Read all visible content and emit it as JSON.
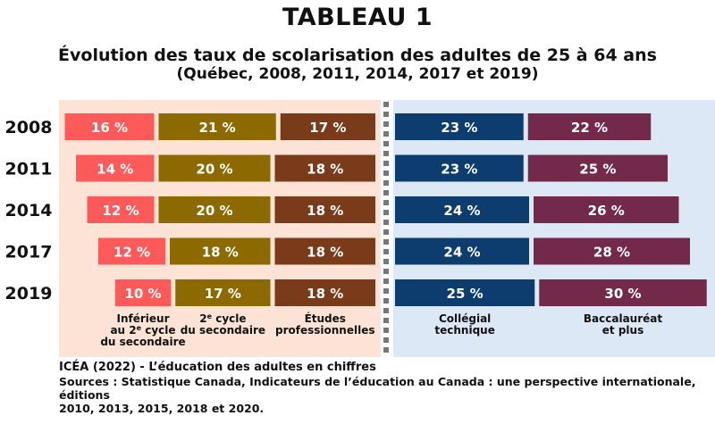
{
  "title": "TABLEAU 1",
  "subtitle": "Évolution des taux de scolarisation des adultes de 25 à 64 ans",
  "subtitle2": "(Québec, 2008, 2011, 2014, 2017 et 2019)",
  "colors": {
    "left_panel_bg": "#fde3d6",
    "right_panel_bg": "#dde8f6",
    "divider": "#777777"
  },
  "chart_data": {
    "type": "bar",
    "layout": "stacked-horizontal-diverging",
    "categories": [
      "2008",
      "2011",
      "2014",
      "2017",
      "2019"
    ],
    "value_suffix": " %",
    "series": [
      {
        "key": "inf",
        "label_lines": [
          "Inférieur",
          "au 2e cycle",
          "du secondaire"
        ],
        "color": "#ff5a5a",
        "side": "left",
        "values": [
          16,
          14,
          12,
          12,
          10
        ]
      },
      {
        "key": "sec",
        "label_lines": [
          "2e cycle",
          "du secondaire"
        ],
        "color": "#8c6a00",
        "side": "left",
        "values": [
          21,
          20,
          20,
          18,
          17
        ]
      },
      {
        "key": "pro",
        "label_lines": [
          "Études",
          "professionnelles"
        ],
        "color": "#7a3b1a",
        "side": "left",
        "values": [
          17,
          18,
          18,
          18,
          18
        ]
      },
      {
        "key": "col",
        "label_lines": [
          "Collégial",
          "technique"
        ],
        "color": "#0d3d6e",
        "side": "right",
        "values": [
          23,
          23,
          24,
          24,
          25
        ]
      },
      {
        "key": "bac",
        "label_lines": [
          "Baccalauréat",
          "et plus"
        ],
        "color": "#732a4a",
        "side": "right",
        "values": [
          22,
          25,
          26,
          28,
          30
        ]
      }
    ]
  },
  "footer": {
    "reference": "ICÉA (2022) - L’éducation des adultes en chiffres",
    "sources_line1": "Sources : Statistique Canada, Indicateurs de l’éducation au Canada : une perspective internationale, éditions",
    "sources_line2": "2010, 2013, 2015, 2018 et 2020."
  }
}
